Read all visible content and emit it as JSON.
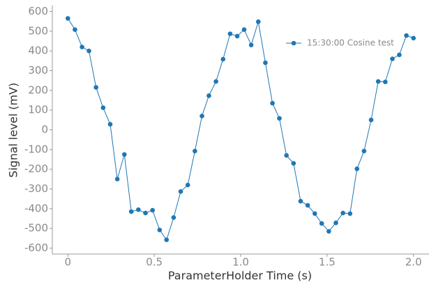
{
  "chart_data": {
    "type": "line",
    "xlabel": "ParameterHolder Time (s)",
    "ylabel": "Signal level (mV)",
    "x": [
      0,
      0.041,
      0.082,
      0.122,
      0.163,
      0.204,
      0.245,
      0.286,
      0.327,
      0.367,
      0.408,
      0.449,
      0.49,
      0.531,
      0.571,
      0.612,
      0.653,
      0.694,
      0.735,
      0.776,
      0.816,
      0.857,
      0.898,
      0.939,
      0.98,
      1.02,
      1.061,
      1.102,
      1.143,
      1.184,
      1.224,
      1.265,
      1.306,
      1.347,
      1.388,
      1.429,
      1.469,
      1.51,
      1.551,
      1.592,
      1.633,
      1.673,
      1.714,
      1.755,
      1.796,
      1.837,
      1.878,
      1.918,
      1.959,
      2.0
    ],
    "series": [
      {
        "name": "15:30:00 Cosine test",
        "color": "#1f77b4",
        "values": [
          565,
          508,
          420,
          400,
          215,
          112,
          28,
          -250,
          -125,
          -415,
          -405,
          -422,
          -408,
          -508,
          -558,
          -445,
          -313,
          -280,
          -108,
          70,
          173,
          245,
          358,
          487,
          475,
          508,
          430,
          548,
          340,
          135,
          58,
          -130,
          -170,
          -362,
          -383,
          -425,
          -475,
          -515,
          -472,
          -422,
          -425,
          -198,
          -108,
          50,
          245,
          243,
          360,
          380,
          478,
          465
        ]
      }
    ],
    "xlim": [
      -0.09,
      2.09
    ],
    "ylim": [
      -630,
      630
    ],
    "xticks": [
      0,
      0.5,
      {
        "value": 1,
        "label": "1.0"
      },
      1.5,
      {
        "value": 2,
        "label": "2.0"
      }
    ],
    "yticks": [
      -600,
      -500,
      -400,
      -300,
      -200,
      -100,
      0,
      100,
      200,
      300,
      400,
      500,
      600
    ],
    "legend": "upper right"
  }
}
